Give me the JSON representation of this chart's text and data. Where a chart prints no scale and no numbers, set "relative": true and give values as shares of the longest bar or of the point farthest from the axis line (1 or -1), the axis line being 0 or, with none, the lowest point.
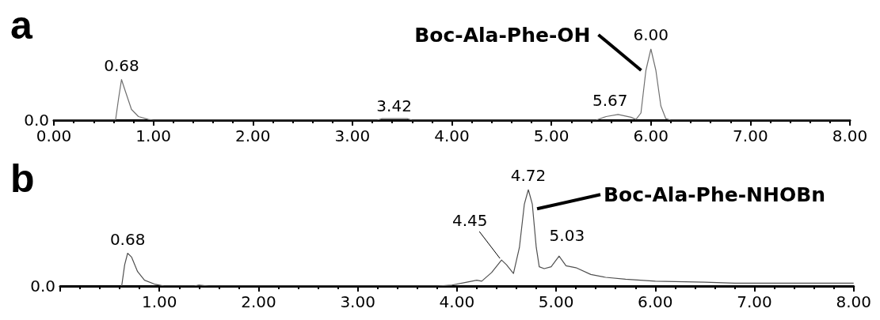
{
  "chart_data": [
    {
      "type": "line",
      "title": "a",
      "relative": true,
      "xlim": [
        0,
        8
      ],
      "xticks": [
        {
          "value": 0,
          "label": "0.00"
        },
        {
          "value": 1,
          "label": "1.00"
        },
        {
          "value": 2,
          "label": "2.00"
        },
        {
          "value": 3,
          "label": "3.00"
        },
        {
          "value": 4,
          "label": "4.00"
        },
        {
          "value": 5,
          "label": "5.00"
        },
        {
          "value": 6,
          "label": "6.00"
        },
        {
          "value": 7,
          "label": "7.00"
        },
        {
          "value": 8,
          "label": "8.00"
        }
      ],
      "grid": false,
      "marker": "none",
      "series": [
        {
          "color": "#707070",
          "x": [
            0,
            0.6,
            0.62,
            0.65,
            0.68,
            0.72,
            0.78,
            0.85,
            0.95,
            1.0,
            3.25,
            3.3,
            3.55,
            3.6,
            5.45,
            5.55,
            5.67,
            5.8,
            5.85,
            5.9,
            5.95,
            6.0,
            6.05,
            6.1,
            6.15,
            6.2,
            8.0
          ],
          "values": [
            0,
            0,
            0,
            0.3,
            0.57,
            0.4,
            0.15,
            0.05,
            0.01,
            0,
            0,
            0.02,
            0.02,
            0,
            0,
            0.05,
            0.08,
            0.04,
            0.01,
            0.1,
            0.7,
            1,
            0.7,
            0.2,
            0.02,
            0,
            0
          ]
        }
      ],
      "annotations": [
        "0.0",
        {
          "text": "0.68",
          "x": 0.68,
          "y": 0.57
        },
        {
          "text": "3.42",
          "x": 3.42,
          "y": 0.02
        },
        {
          "text": "5.67",
          "x": 5.67,
          "y": 0.08
        },
        {
          "text": "6.00",
          "x": 6.0,
          "y": 1
        },
        {
          "text": "Boc-Ala-Phe-OH",
          "x": 5.95,
          "y": 0.7
        }
      ]
    },
    {
      "type": "line",
      "title": "b",
      "relative": true,
      "xlim": [
        0,
        8
      ],
      "xticks": [
        {
          "value": 0,
          "label": null
        },
        {
          "value": 1,
          "label": "1.00"
        },
        {
          "value": 2,
          "label": "2.00"
        },
        {
          "value": 3,
          "label": "3.00"
        },
        {
          "value": 4,
          "label": "4.00"
        },
        {
          "value": 5,
          "label": "5.00"
        },
        {
          "value": 6,
          "label": "6.00"
        },
        {
          "value": 7,
          "label": "7.00"
        },
        {
          "value": 8,
          "label": "8.00"
        }
      ],
      "grid": false,
      "marker": "none",
      "series": [
        {
          "color": "#505050",
          "x": [
            0.62,
            0.65,
            0.68,
            0.72,
            0.78,
            0.85,
            0.95,
            1.05,
            1.35,
            1.4,
            1.5,
            3.8,
            3.95,
            4.1,
            4.2,
            4.25,
            4.35,
            4.45,
            4.5,
            4.57,
            4.63,
            4.68,
            4.72,
            4.76,
            4.8,
            4.83,
            4.88,
            4.95,
            5.03,
            5.1,
            5.2,
            5.35,
            5.5,
            5.7,
            6.0,
            6.5,
            6.8,
            7.0,
            8.0
          ],
          "values": [
            0,
            0.22,
            0.34,
            0.3,
            0.15,
            0.06,
            0.02,
            0,
            0,
            0.01,
            0,
            0,
            0.01,
            0.04,
            0.06,
            0.05,
            0.14,
            0.27,
            0.22,
            0.13,
            0.4,
            0.85,
            1,
            0.85,
            0.4,
            0.2,
            0.18,
            0.2,
            0.31,
            0.21,
            0.19,
            0.12,
            0.09,
            0.07,
            0.05,
            0.04,
            0.03,
            0.03,
            0.03
          ]
        }
      ],
      "annotations": [
        "0.0",
        {
          "text": "0.68",
          "x": 0.68,
          "y": 0.34
        },
        {
          "text": "4.45",
          "x": 4.45,
          "y": 0.27
        },
        {
          "text": "4.72",
          "x": 4.72,
          "y": 1
        },
        {
          "text": "5.03",
          "x": 5.03,
          "y": 0.31
        },
        {
          "text": "Boc-Ala-Phe-NHOBn",
          "x": 4.76,
          "y": 0.85
        }
      ]
    }
  ]
}
